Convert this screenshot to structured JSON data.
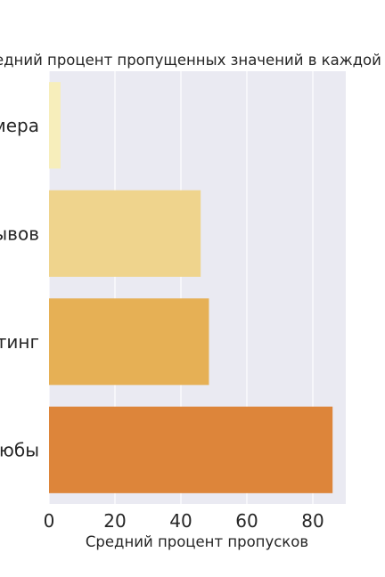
{
  "chart_data": {
    "type": "bar",
    "orientation": "horizontal",
    "title": "едний процент пропущенных значений в каждой гру",
    "categories": [
      "мера",
      "ывов",
      "тинг",
      "юбы"
    ],
    "values": [
      3.5,
      46,
      48.5,
      86
    ],
    "xlabel": "Средний процент пропусков",
    "ylabel": "",
    "xlim": [
      0,
      90
    ],
    "xticks": [
      0,
      20,
      40,
      60,
      80
    ],
    "xtick_labels": [
      "0",
      "20",
      "40",
      "60",
      "80"
    ],
    "grid": true,
    "legend": "none",
    "colors": [
      "#f7eebb",
      "#efd48d",
      "#e6b055",
      "#dd853a"
    ],
    "background": "#eaeaf2"
  }
}
